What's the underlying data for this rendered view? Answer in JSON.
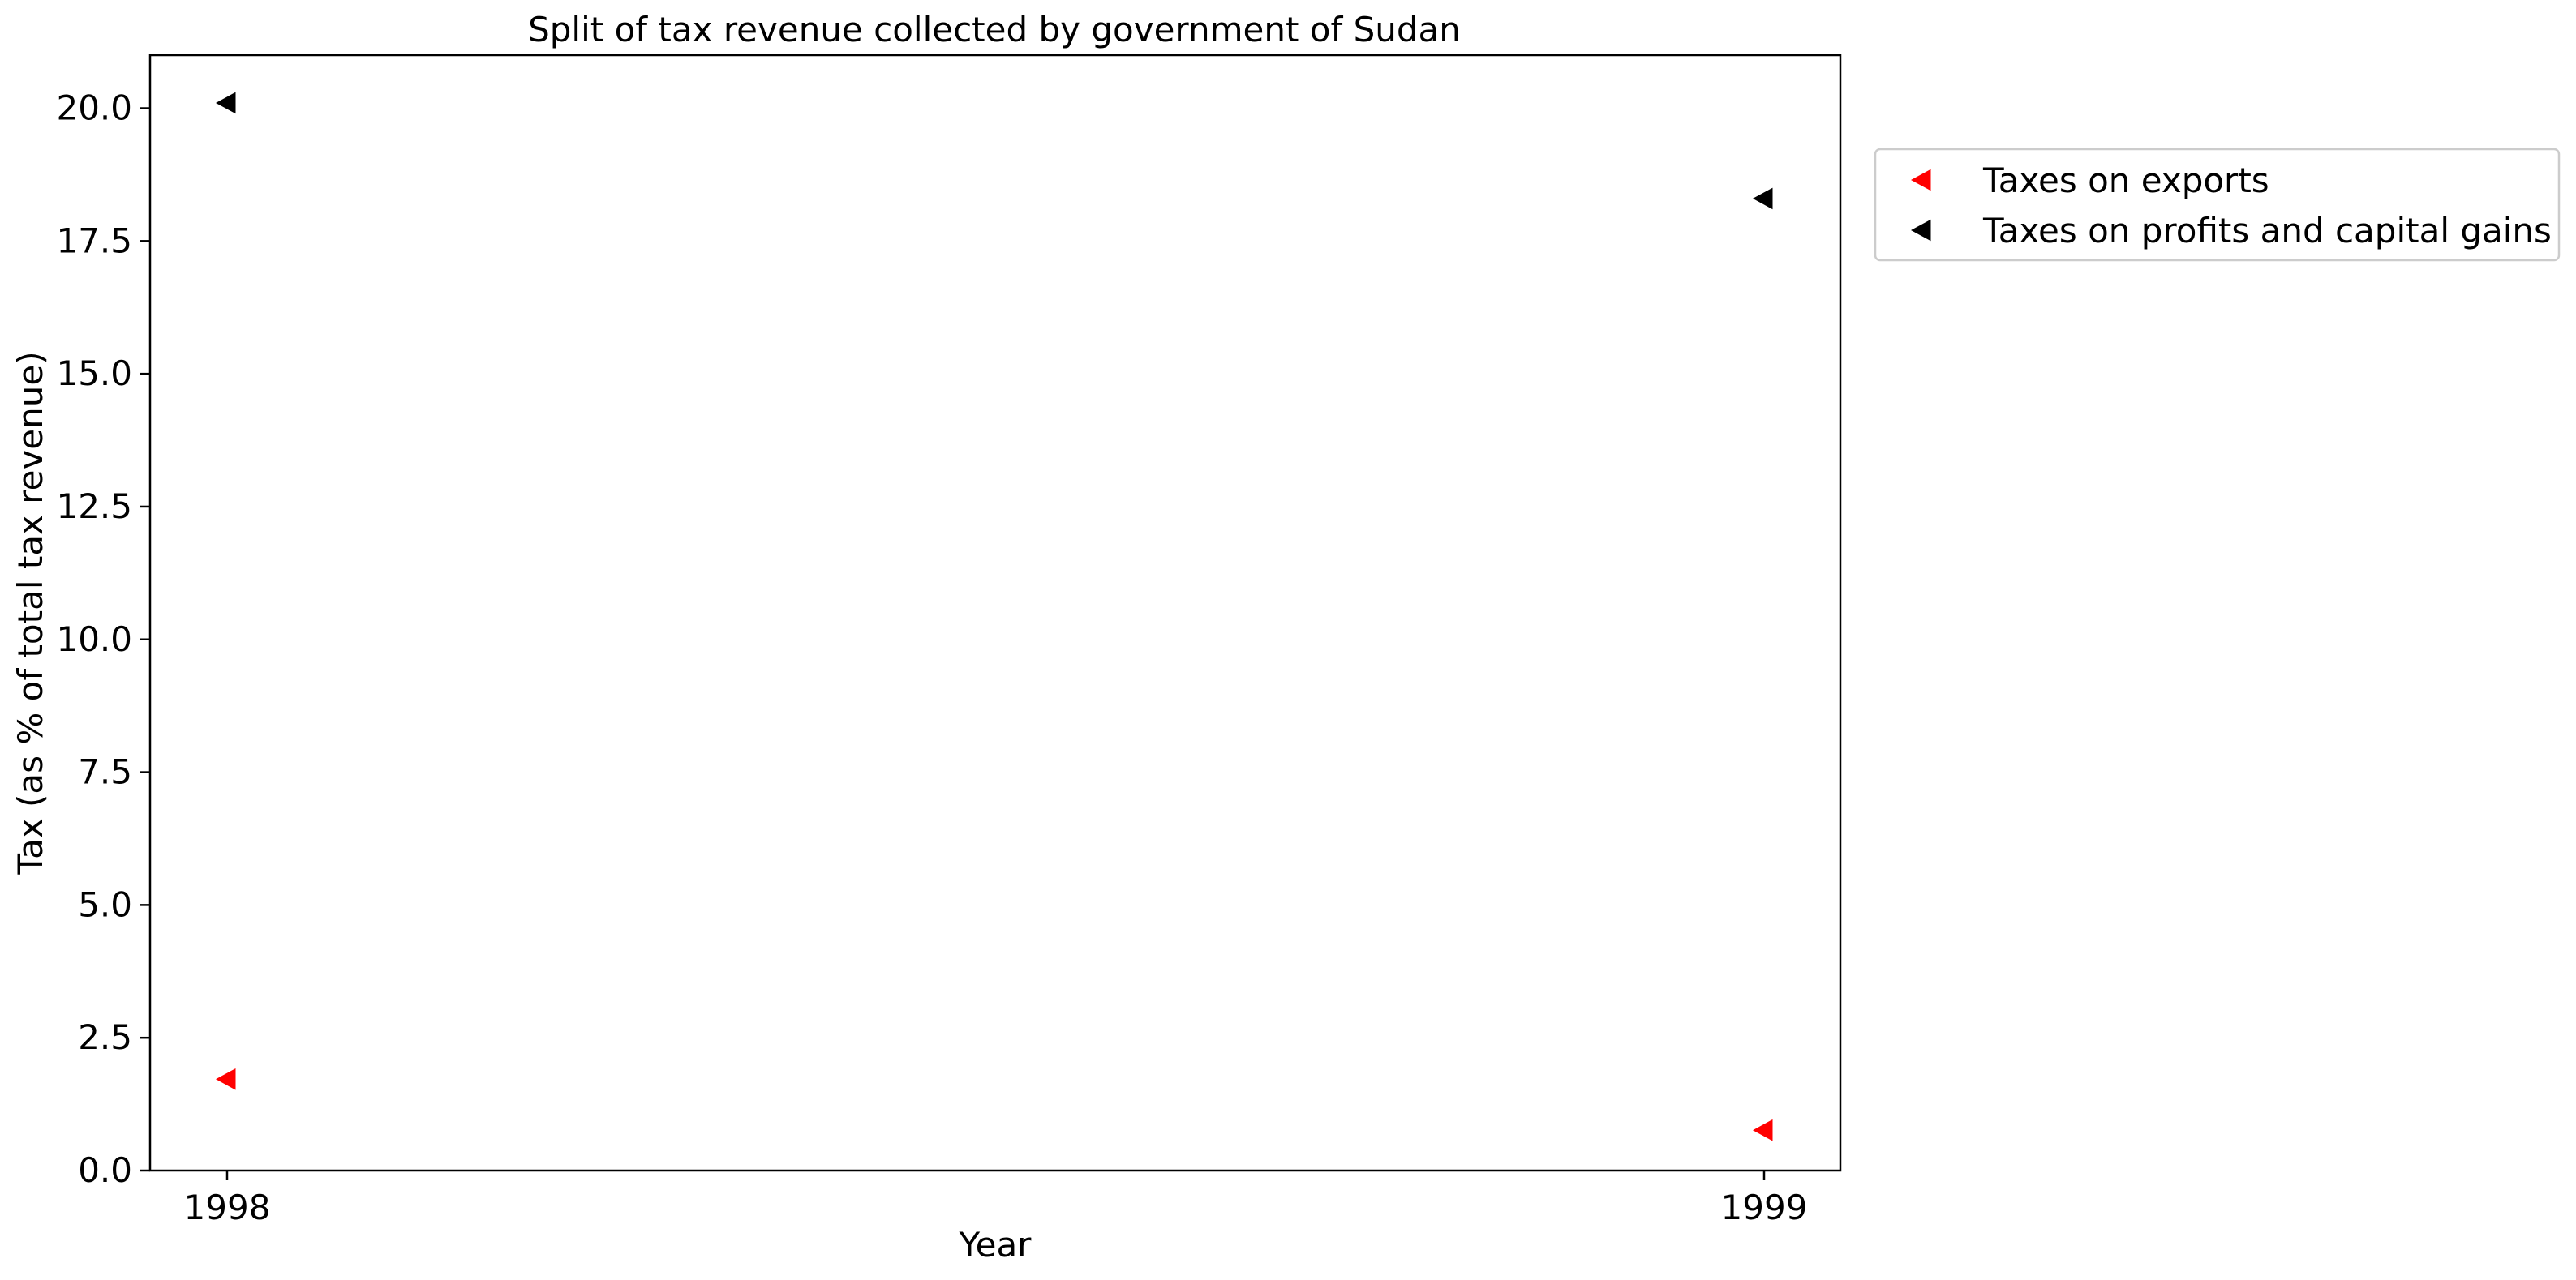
{
  "chart_data": {
    "type": "scatter",
    "title": "Split of tax revenue collected by government of Sudan",
    "xlabel": "Year",
    "ylabel": "Tax (as % of total tax revenue)",
    "x": [
      1998,
      1999
    ],
    "xticks": [
      "1998",
      "1999"
    ],
    "ylim": [
      0,
      21
    ],
    "yticks": [
      "0.0",
      "2.5",
      "5.0",
      "7.5",
      "10.0",
      "12.5",
      "15.0",
      "17.5",
      "20.0"
    ],
    "grid": false,
    "legend_position": "outside-upper-right",
    "marker": "triangle-left",
    "series": [
      {
        "name": "Taxes on exports",
        "color": "#ff0000",
        "values": [
          1.72,
          0.76
        ]
      },
      {
        "name": "Taxes on profits and capital gains",
        "color": "#000000",
        "values": [
          20.1,
          18.3
        ]
      }
    ]
  }
}
